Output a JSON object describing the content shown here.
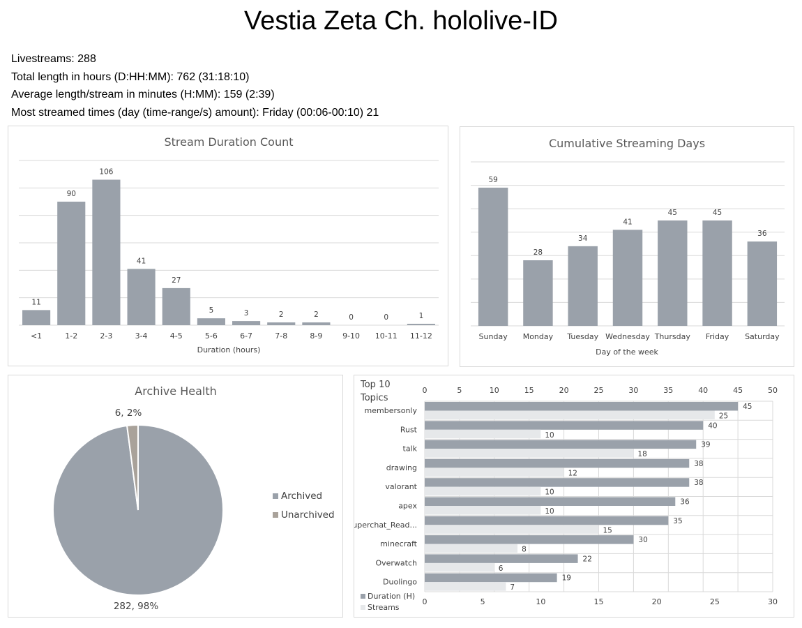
{
  "page": {
    "title": "Vestia Zeta Ch. hololive-ID",
    "stats": [
      "Livestreams: 288",
      "Total length in hours (D:HH:MM): 762 (31:18:10)",
      "Average length/stream in minutes (H:MM): 159 (2:39)",
      "Most streamed times (day (time-range/s) amount): Friday (00:06-00:10) 21"
    ]
  },
  "colors": {
    "bar": "#9aa1aa",
    "light_bar": "#e6e8ea",
    "unarchived": "#a9a29a",
    "grid": "#d9d9d9",
    "text": "#404040",
    "title_text": "#595959"
  },
  "chart_data": [
    {
      "type": "bar",
      "title": "Stream Duration Count",
      "xlabel": "Duration (hours)",
      "categories": [
        "<1",
        "1-2",
        "2-3",
        "3-4",
        "4-5",
        "5-6",
        "6-7",
        "7-8",
        "8-9",
        "9-10",
        "10-11",
        "11-12"
      ],
      "values": [
        11,
        90,
        106,
        41,
        27,
        5,
        3,
        2,
        2,
        0,
        0,
        1
      ],
      "ylim": [
        0,
        120
      ],
      "grid": true
    },
    {
      "type": "bar",
      "title": "Cumulative Streaming Days",
      "xlabel": "Day of the week",
      "categories": [
        "Sunday",
        "Monday",
        "Tuesday",
        "Wednesday",
        "Thursday",
        "Friday",
        "Saturday"
      ],
      "values": [
        59,
        28,
        34,
        41,
        45,
        45,
        36
      ],
      "ylim": [
        0,
        70
      ],
      "grid": true
    },
    {
      "type": "pie",
      "title": "Archive Health",
      "labels": [
        "Archived",
        "Unarchived"
      ],
      "values": [
        282,
        6
      ],
      "data_labels": [
        "282, 98%",
        "6, 2%"
      ],
      "legend": "right"
    },
    {
      "type": "bar",
      "orientation": "horizontal",
      "title": "Top 10 Topics",
      "categories": [
        "membersonly",
        "Rust",
        "talk",
        "drawing",
        "valorant",
        "apex",
        "Superchat_Read...",
        "minecraft",
        "Overwatch",
        "Duolingo"
      ],
      "series": [
        {
          "name": "Duration (H)",
          "values": [
            45,
            40,
            39,
            38,
            38,
            36,
            35,
            30,
            22,
            19
          ],
          "axis": "top",
          "range": [
            0,
            50
          ]
        },
        {
          "name": "Streams",
          "values": [
            25,
            10,
            18,
            12,
            10,
            10,
            15,
            8,
            6,
            7
          ],
          "axis": "bottom",
          "range": [
            0,
            30
          ]
        }
      ],
      "top_ticks": [
        0,
        5,
        10,
        15,
        20,
        25,
        30,
        35,
        40,
        45,
        50
      ],
      "bottom_ticks": [
        0,
        5,
        10,
        15,
        20,
        25,
        30
      ],
      "legend": "bottom-left",
      "grid": true
    }
  ]
}
